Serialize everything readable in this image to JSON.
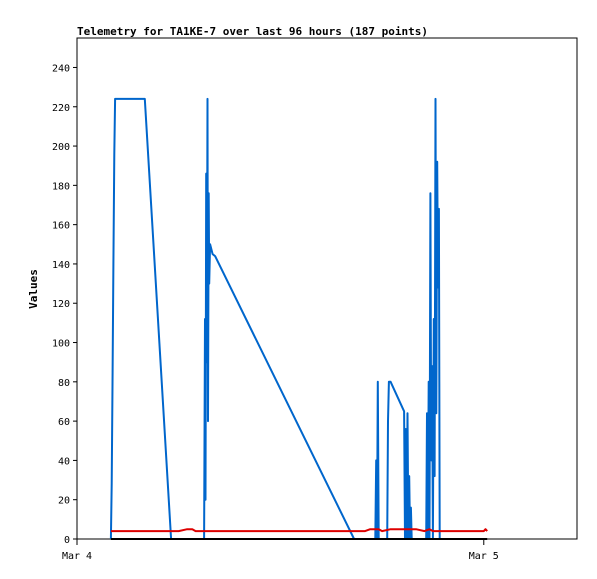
{
  "chart_data": {
    "type": "line",
    "title": "Telemetry for TA1KE-7 over last 96 hours (187 points)",
    "ylabel": "Values",
    "xlabel": "",
    "x_unit": "hours since Mar 4 00:00",
    "xlim": [
      0,
      29.5
    ],
    "ylim": [
      0,
      255
    ],
    "yticks": [
      0,
      20,
      40,
      60,
      80,
      100,
      120,
      140,
      160,
      180,
      200,
      220,
      240
    ],
    "xticks": [
      {
        "value": 0,
        "label": "Mar 4"
      },
      {
        "value": 24,
        "label": "Mar 5"
      }
    ],
    "grid": false,
    "legend": "none",
    "series": [
      {
        "color": "#0066cc",
        "points": [
          [
            2.0,
            0
          ],
          [
            2.05,
            28
          ],
          [
            2.1,
            85
          ],
          [
            2.15,
            140
          ],
          [
            2.2,
            196
          ],
          [
            2.25,
            224
          ],
          [
            4.0,
            224
          ],
          [
            5.55,
            0
          ],
          [
            7.5,
            0
          ],
          [
            7.55,
            112
          ],
          [
            7.58,
            20
          ],
          [
            7.62,
            186
          ],
          [
            7.66,
            90
          ],
          [
            7.7,
            224
          ],
          [
            7.73,
            60
          ],
          [
            7.77,
            176
          ],
          [
            7.8,
            130
          ],
          [
            7.85,
            150
          ],
          [
            8.0,
            145
          ],
          [
            8.15,
            144
          ],
          [
            16.35,
            0
          ],
          [
            17.6,
            0
          ],
          [
            17.65,
            40
          ],
          [
            17.7,
            0
          ],
          [
            17.75,
            80
          ],
          [
            17.8,
            0
          ],
          [
            18.3,
            0
          ],
          [
            18.35,
            60
          ],
          [
            18.4,
            80
          ],
          [
            18.5,
            80
          ],
          [
            19.3,
            65
          ],
          [
            19.35,
            0
          ],
          [
            19.4,
            56
          ],
          [
            19.45,
            0
          ],
          [
            19.5,
            64
          ],
          [
            19.55,
            0
          ],
          [
            19.6,
            32
          ],
          [
            19.65,
            0
          ],
          [
            19.7,
            16
          ],
          [
            19.75,
            0
          ],
          [
            20.6,
            0
          ],
          [
            20.65,
            64
          ],
          [
            20.7,
            0
          ],
          [
            20.75,
            80
          ],
          [
            20.8,
            0
          ],
          [
            20.85,
            176
          ],
          [
            20.9,
            40
          ],
          [
            20.95,
            88
          ],
          [
            21.0,
            0
          ],
          [
            21.05,
            112
          ],
          [
            21.1,
            32
          ],
          [
            21.15,
            224
          ],
          [
            21.2,
            64
          ],
          [
            21.25,
            192
          ],
          [
            21.3,
            128
          ],
          [
            21.35,
            168
          ],
          [
            21.4,
            0
          ]
        ]
      },
      {
        "color": "#dd0000",
        "points": [
          [
            2.0,
            4
          ],
          [
            2.2,
            4
          ],
          [
            6.0,
            4
          ],
          [
            6.5,
            5
          ],
          [
            6.8,
            5
          ],
          [
            7.0,
            4
          ],
          [
            17.0,
            4
          ],
          [
            17.3,
            5
          ],
          [
            17.8,
            5
          ],
          [
            18.0,
            4
          ],
          [
            18.5,
            5
          ],
          [
            20.0,
            5
          ],
          [
            20.5,
            4
          ],
          [
            20.8,
            5
          ],
          [
            21.0,
            4
          ],
          [
            23.0,
            4
          ],
          [
            24.0,
            4
          ],
          [
            24.1,
            5
          ],
          [
            24.2,
            4
          ]
        ]
      },
      {
        "color": "#000000",
        "points": [
          [
            2.0,
            0
          ],
          [
            24.2,
            0
          ]
        ]
      }
    ]
  }
}
